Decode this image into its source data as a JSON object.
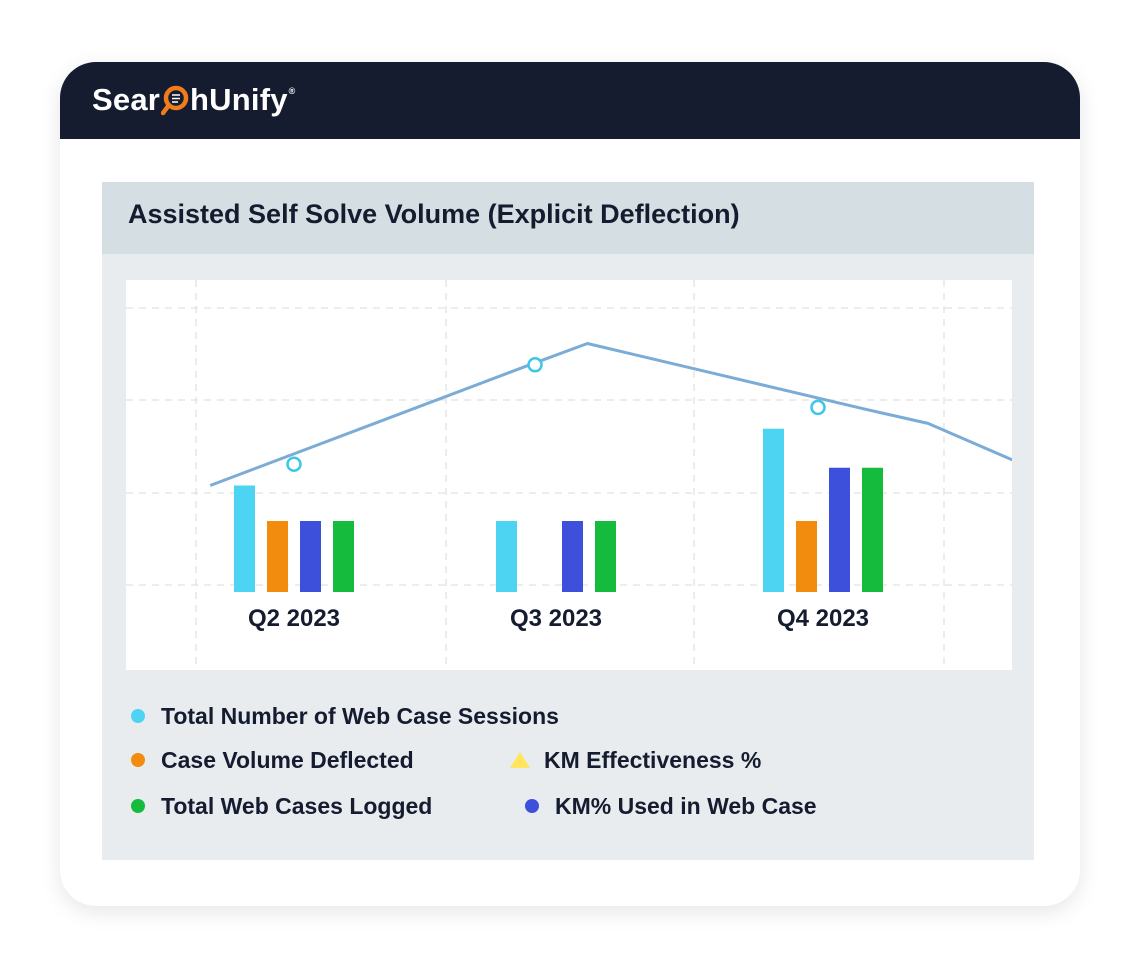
{
  "brand": {
    "name_before": "Sear",
    "name_after": "hUnify",
    "mark": "®",
    "accent": "#f07c1a",
    "header_bg": "#151c30"
  },
  "panel": {
    "title": "Assisted Self Solve Volume (Explicit Deflection)"
  },
  "chart_data": {
    "type": "bar",
    "title": "Assisted Self Solve Volume (Explicit Deflection)",
    "categories": [
      "Q2 2023",
      "Q3 2023",
      "Q4 2023"
    ],
    "series": [
      {
        "name": "Total Number of Web Case Sessions",
        "color": "#4dd4f2",
        "values": [
          3.0,
          2.0,
          4.6
        ]
      },
      {
        "name": "Case Volume Deflected",
        "color": "#f28c0f",
        "values": [
          2.0,
          0,
          2.0
        ]
      },
      {
        "name": "KM% Used in Web Case",
        "color": "#3c50dc",
        "values": [
          2.0,
          2.0,
          3.5
        ]
      },
      {
        "name": "Total Web Cases Logged",
        "color": "#14bb3d",
        "values": [
          2.0,
          2.0,
          3.5
        ]
      }
    ],
    "line_series": {
      "name": "KM Effectiveness %",
      "color": "#7aacd6",
      "marker_color": "#3ec6e8",
      "points": [
        [
          -0.32,
          3.0
        ],
        [
          0.9,
          6.4
        ],
        [
          1.12,
          7.0
        ],
        [
          2.18,
          5.15
        ],
        [
          2.42,
          4.75
        ],
        [
          2.78,
          3.6
        ]
      ],
      "markers": [
        [
          0.0,
          3.6
        ],
        [
          0.92,
          6.4
        ],
        [
          2.0,
          5.2
        ]
      ]
    },
    "ylim": [
      0,
      8
    ],
    "grid": true,
    "legend": [
      {
        "label": "Total Number of Web Case Sessions",
        "shape": "circle",
        "color": "#4dd4f2"
      },
      {
        "label": "Case Volume Deflected",
        "shape": "circle",
        "color": "#f28c0f"
      },
      {
        "label": "KM Effectiveness %",
        "shape": "triangle",
        "color": "#ffe45c"
      },
      {
        "label": "Total Web Cases Logged",
        "shape": "circle",
        "color": "#14bb3d"
      },
      {
        "label": "KM% Used in Web Case",
        "shape": "circle",
        "color": "#3c50dc"
      }
    ]
  }
}
